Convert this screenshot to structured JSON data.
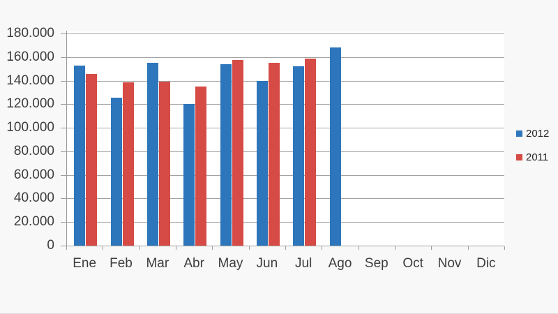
{
  "page": {
    "background": "#f8f8f8",
    "plot_background": "#ffffff",
    "gridline_color": "#a3a3a3",
    "axis_color": "#9b9b9b",
    "label_color": "#3d3d3d"
  },
  "chart_data": {
    "type": "bar",
    "title": "",
    "xlabel": "",
    "ylabel": "",
    "categories": [
      "Ene",
      "Feb",
      "Mar",
      "Abr",
      "May",
      "Jun",
      "Jul",
      "Ago",
      "Sep",
      "Oct",
      "Nov",
      "Dic"
    ],
    "series": [
      {
        "name": "2012",
        "color": "#2e76bb",
        "values": [
          153000,
          125500,
          155000,
          120000,
          154000,
          140000,
          152000,
          168000,
          null,
          null,
          null,
          null
        ]
      },
      {
        "name": "2011",
        "color": "#d64b45",
        "values": [
          145500,
          138500,
          139000,
          135000,
          157500,
          155000,
          158500,
          null,
          null,
          null,
          null,
          null
        ]
      }
    ],
    "ylim": [
      0,
      180000
    ],
    "ytick_step": 20000,
    "ytick_labels": [
      "0",
      "20.000",
      "40.000",
      "60.000",
      "80.000",
      "100.000",
      "120.000",
      "140.000",
      "160.000",
      "180.000"
    ],
    "grid": "horizontal",
    "legend_position": "right"
  }
}
